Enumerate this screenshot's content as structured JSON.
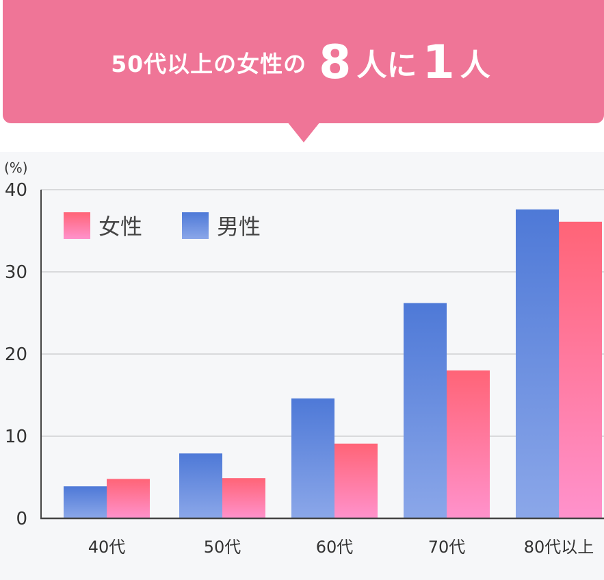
{
  "headline": {
    "lead": "50代以上の女性の",
    "num1": "8",
    "mid1": "人に",
    "num2": "1",
    "mid2": "人"
  },
  "colors": {
    "banner": "#ef7597",
    "female_top": "#ff6477",
    "female_bottom": "#ff92cc",
    "male_top": "#4e79d7",
    "male_bottom": "#8ba7e9",
    "gridline": "#c8c9cc",
    "axis": "#444444"
  },
  "chart_data": {
    "type": "bar",
    "unit_label": "(%)",
    "categories": [
      "40代",
      "50代",
      "60代",
      "70代",
      "80代以上"
    ],
    "series": [
      {
        "name": "男性",
        "color": "#4e79d7",
        "values": [
          3.9,
          7.9,
          14.6,
          26.2,
          37.6
        ]
      },
      {
        "name": "女性",
        "color": "#ff6477",
        "values": [
          4.8,
          4.9,
          9.1,
          18.0,
          36.1
        ]
      }
    ],
    "legend_order": [
      "女性",
      "男性"
    ],
    "legend_position": "top-left",
    "yticks": [
      0,
      10,
      20,
      30,
      40
    ],
    "ylim": [
      0,
      40
    ],
    "grid": true
  }
}
